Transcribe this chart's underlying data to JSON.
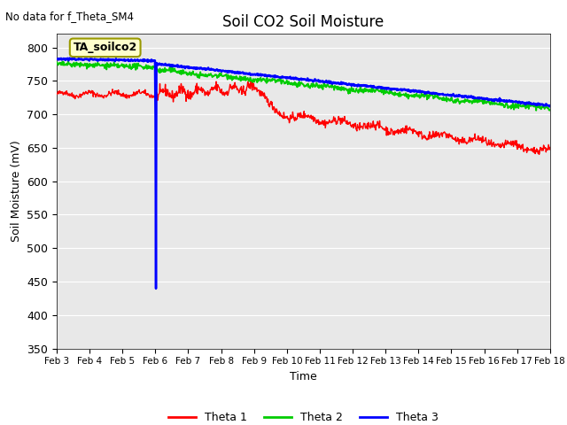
{
  "title": "Soil CO2 Soil Moisture",
  "no_data_text": "No data for f_Theta_SM4",
  "xlabel": "Time",
  "ylabel": "Soil Moisture (mV)",
  "ylim": [
    350,
    820
  ],
  "yticks": [
    350,
    400,
    450,
    500,
    550,
    600,
    650,
    700,
    750,
    800
  ],
  "x_labels": [
    "Feb 3",
    "Feb 4",
    "Feb 5",
    "Feb 6",
    "Feb 7",
    "Feb 8",
    "Feb 9",
    "Feb 10",
    "Feb 11",
    "Feb 12",
    "Feb 13",
    "Feb 14",
    "Feb 15",
    "Feb 16",
    "Feb 17",
    "Feb 18"
  ],
  "annotation_text": "TA_soilco2",
  "bg_color": "#e8e8e8",
  "fig_color": "#ffffff",
  "line_colors": {
    "theta1": "#ff0000",
    "theta2": "#00cc00",
    "theta3": "#0000ff"
  },
  "legend_labels": [
    "Theta 1",
    "Theta 2",
    "Theta 3"
  ],
  "seed": 42,
  "n_points": 1000
}
